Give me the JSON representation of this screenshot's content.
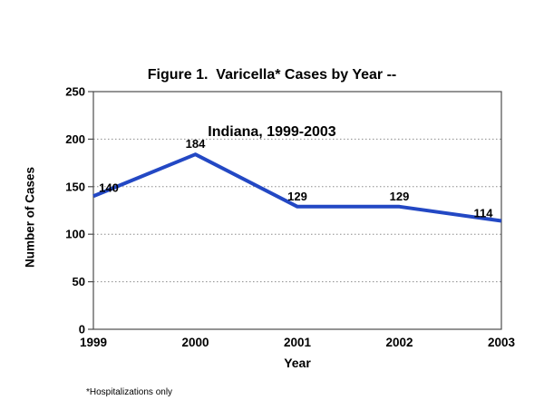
{
  "title": {
    "line1": "Figure 1.  Varicella* Cases by Year --",
    "line2": "Indiana, 1999-2003"
  },
  "axes": {
    "y_label": "Number of Cases",
    "x_label": "Year"
  },
  "footnote": "*Hospitalizations only",
  "colors": {
    "line": "#2348c4",
    "grid": "#8c8c8c",
    "axis": "#4d4d4d",
    "text": "#000000"
  },
  "chart_data": {
    "type": "line",
    "title": "Figure 1. Varicella* Cases by Year -- Indiana, 1999-2003",
    "categories": [
      "1999",
      "2000",
      "2001",
      "2002",
      "2003"
    ],
    "values": [
      140,
      184,
      129,
      129,
      114
    ],
    "point_labels": [
      "140",
      "184",
      "129",
      "129",
      "114"
    ],
    "xlabel": "Year",
    "ylabel": "Number of Cases",
    "ylim": [
      0,
      250
    ],
    "yticks": [
      0,
      50,
      100,
      150,
      200,
      250
    ],
    "grid": "horizontal-dotted",
    "legend": "none"
  }
}
